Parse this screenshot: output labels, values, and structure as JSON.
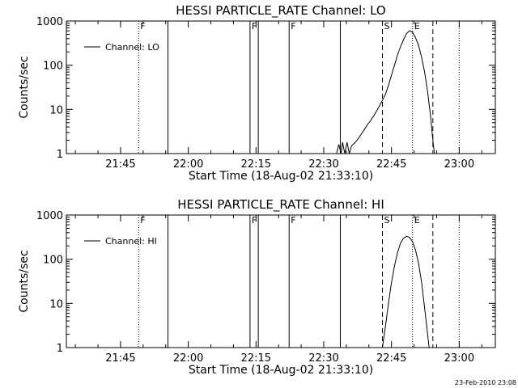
{
  "chart_data": [
    {
      "type": "line",
      "title": "HESSI PARTICLE_RATE Channel: LO",
      "xlabel": "Start Time (18-Aug-02 21:33:10)",
      "ylabel": "Counts/sec",
      "yscale": "log",
      "ylim": [
        1,
        1000
      ],
      "xlim": [
        "21:33",
        "23:08"
      ],
      "ytick_labels": [
        "1",
        "10",
        "100",
        "1000"
      ],
      "xtick_labels": [
        "21:45",
        "22:00",
        "22:15",
        "22:30",
        "22:45",
        "23:00"
      ],
      "legend": {
        "placement": "top-left",
        "entries": [
          "Channel: LO"
        ]
      },
      "markers": [
        {
          "time": "21:49:00",
          "style": "dotted",
          "label": "F"
        },
        {
          "time": "21:55:30",
          "style": "solid",
          "label": ""
        },
        {
          "time": "22:13:40",
          "style": "solid",
          "label": "F"
        },
        {
          "time": "22:15:30",
          "style": "solid",
          "label": ""
        },
        {
          "time": "22:22:20",
          "style": "solid",
          "label": "F"
        },
        {
          "time": "22:33:40",
          "style": "solid",
          "label": ""
        },
        {
          "time": "22:43:00",
          "style": "dashed",
          "label": "S"
        },
        {
          "time": "22:49:40",
          "style": "dotted",
          "label": "E"
        },
        {
          "time": "22:54:10",
          "style": "dashed",
          "label": ""
        },
        {
          "time": "23:00:00",
          "style": "dotted",
          "label": ""
        }
      ],
      "series": [
        {
          "x": [
            "22:32:50",
            "22:33:20",
            "22:33:50",
            "22:34:10",
            "22:34:40",
            "22:35:10",
            "22:35:40",
            "22:36:10",
            "22:37:00",
            "22:37:40",
            "22:38:20",
            "22:39:00",
            "22:39:40",
            "22:40:20",
            "22:41:00",
            "22:41:40",
            "22:42:20",
            "22:43:00",
            "22:43:40",
            "22:44:20",
            "22:45:00",
            "22:45:40",
            "22:46:20",
            "22:47:00",
            "22:47:40",
            "22:48:20",
            "22:49:00",
            "22:49:40",
            "22:50:20",
            "22:51:00",
            "22:51:40",
            "22:52:20",
            "22:53:00",
            "22:53:40",
            "22:54:10",
            "22:54:30"
          ],
          "values": [
            1,
            1.6,
            1,
            1.8,
            1,
            1.8,
            1,
            1.5,
            1.8,
            2.2,
            2.8,
            3.5,
            4.5,
            5.5,
            7,
            9,
            12,
            16,
            22,
            35,
            60,
            100,
            170,
            260,
            380,
            520,
            600,
            560,
            420,
            280,
            150,
            70,
            25,
            7,
            2,
            1
          ]
        }
      ]
    },
    {
      "type": "line",
      "title": "HESSI PARTICLE_RATE Channel: HI",
      "xlabel": "Start Time (18-Aug-02 21:33:10)",
      "ylabel": "Counts/sec",
      "yscale": "log",
      "ylim": [
        1,
        1000
      ],
      "xlim": [
        "21:33",
        "23:08"
      ],
      "ytick_labels": [
        "1",
        "10",
        "100",
        "1000"
      ],
      "xtick_labels": [
        "21:45",
        "22:00",
        "22:15",
        "22:30",
        "22:45",
        "23:00"
      ],
      "legend": {
        "placement": "top-left",
        "entries": [
          "Channel: HI"
        ]
      },
      "markers": [
        {
          "time": "21:49:00",
          "style": "dotted",
          "label": "F"
        },
        {
          "time": "21:55:30",
          "style": "solid",
          "label": ""
        },
        {
          "time": "22:13:40",
          "style": "solid",
          "label": "F"
        },
        {
          "time": "22:15:30",
          "style": "solid",
          "label": ""
        },
        {
          "time": "22:22:20",
          "style": "solid",
          "label": "F"
        },
        {
          "time": "22:33:40",
          "style": "solid",
          "label": ""
        },
        {
          "time": "22:43:00",
          "style": "dashed",
          "label": "S"
        },
        {
          "time": "22:49:40",
          "style": "dotted",
          "label": "E"
        },
        {
          "time": "22:54:10",
          "style": "dashed",
          "label": ""
        },
        {
          "time": "23:00:00",
          "style": "dotted",
          "label": ""
        }
      ],
      "series": [
        {
          "x": [
            "22:43:00",
            "22:43:40",
            "22:44:20",
            "22:45:00",
            "22:45:40",
            "22:46:20",
            "22:47:00",
            "22:47:40",
            "22:48:20",
            "22:49:00",
            "22:49:40",
            "22:50:20",
            "22:51:00",
            "22:51:40",
            "22:52:20",
            "22:53:00",
            "22:53:20"
          ],
          "values": [
            1,
            3,
            10,
            30,
            70,
            140,
            230,
            300,
            330,
            310,
            250,
            160,
            80,
            30,
            8,
            2,
            1
          ]
        }
      ]
    }
  ],
  "footer": {
    "timestamp": "23-Feb-2010 23:08"
  }
}
